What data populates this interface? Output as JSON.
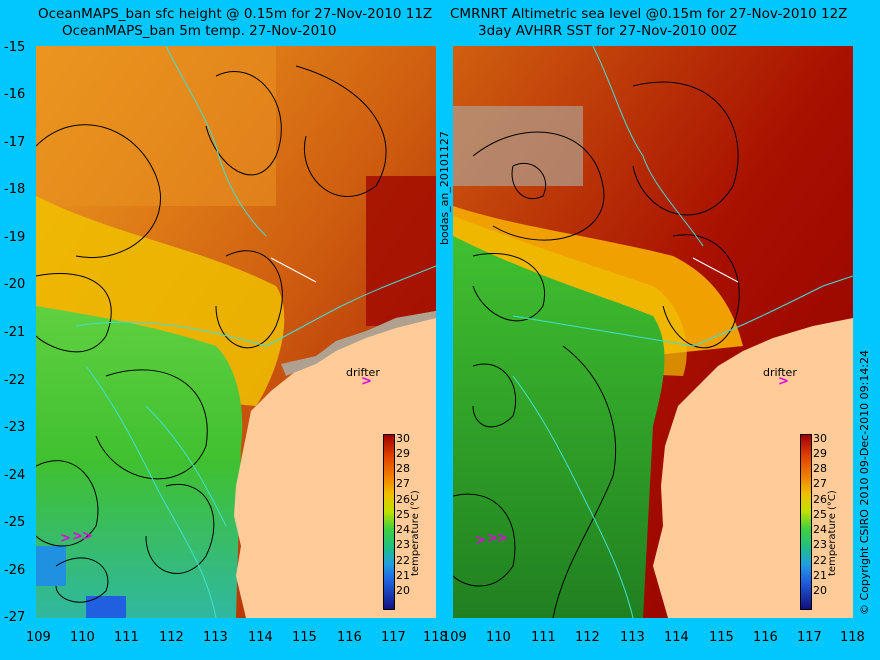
{
  "titles": {
    "left_line1": "OceanMAPS_ban sfc height @ 0.15m for 27-Nov-2010 11Z",
    "left_line2": "OceanMAPS_ban 5m temp. 27-Nov-2010",
    "right_line1": "CMRNRT Altimetric sea level  @0.15m  for 27-Nov-2010 12Z",
    "right_line2": "3day AVHRR SST for 27-Nov-2010 00Z"
  },
  "y_ticks": [
    "-15",
    "-16",
    "-17",
    "-18",
    "-19",
    "-20",
    "-21",
    "-22",
    "-23",
    "-24",
    "-25",
    "-26",
    "-27"
  ],
  "x_ticks": [
    "109",
    "110",
    "111",
    "112",
    "113",
    "114",
    "115",
    "116",
    "117",
    "118"
  ],
  "colorbar": {
    "title": "temperature (°C)",
    "ticks": [
      "30",
      "29",
      "28",
      "27",
      "26",
      "25",
      "24",
      "23",
      "22",
      "21",
      "20"
    ]
  },
  "side_label": "bodas_an_20101127",
  "copyright": "© Copyright CSIRO 2010   09-Dec-2010 09:14:24",
  "drifter_label": "drifter",
  "drifter_glyph": ">",
  "colors": {
    "background": "#00c8ff",
    "land": "#ffcc99",
    "no_data": "#b0a090",
    "coast_line": "#40e0d0",
    "drifter": "#e000e0"
  }
}
